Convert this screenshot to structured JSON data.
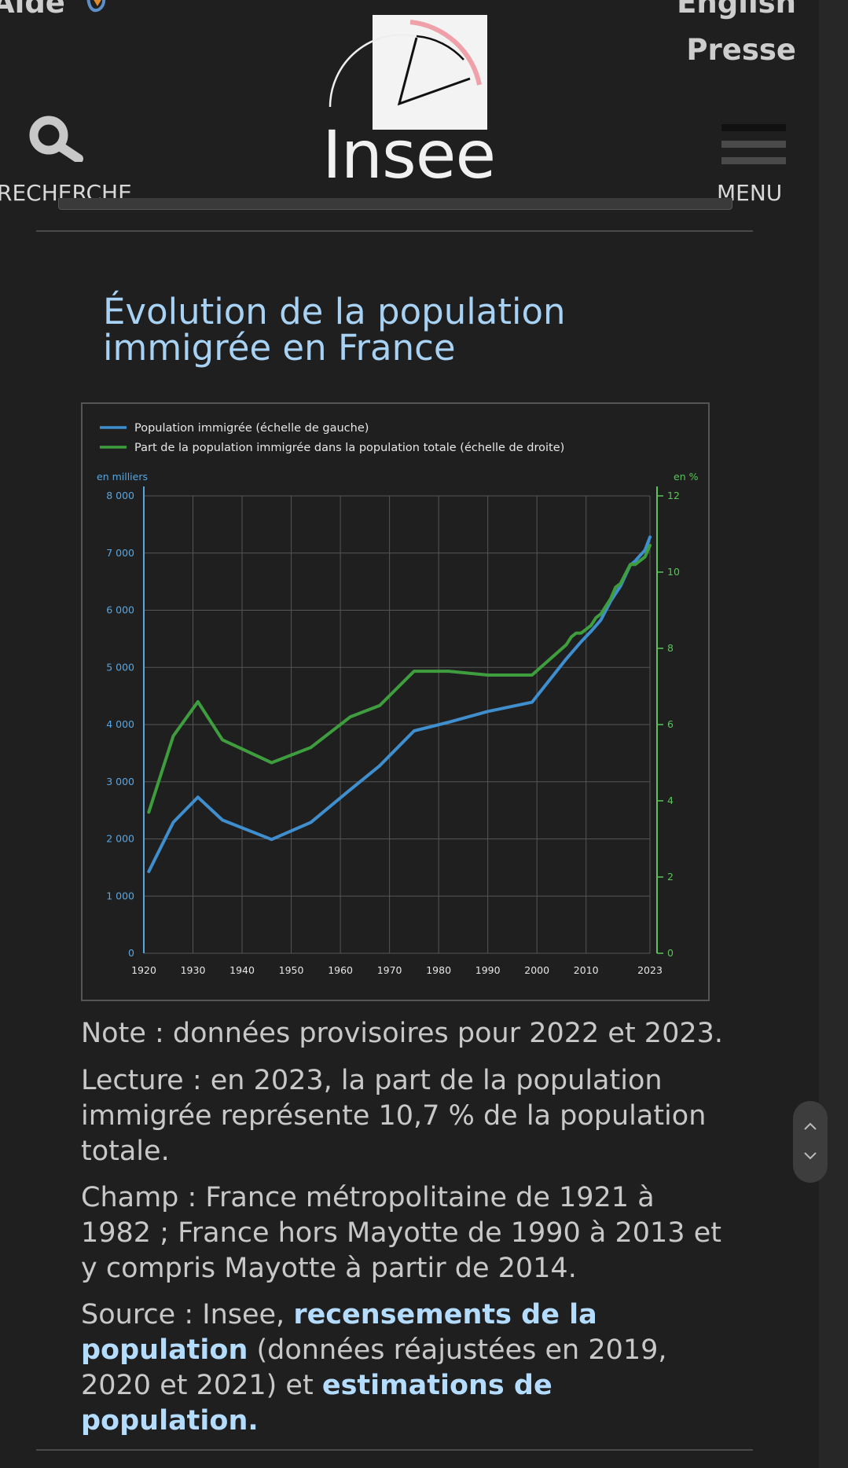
{
  "header": {
    "aide_label": "Aide",
    "english_label": "English",
    "presse_label": "Presse",
    "logo_text": "Insee",
    "search_label": "RECHERCHE",
    "menu_label": "MENU"
  },
  "main": {
    "title_line1": "Évolution de la population",
    "title_line2": "immigrée en France",
    "note": "Note : données provisoires pour 2022 et 2023.",
    "lecture": "Lecture : en 2023, la part de la population immigrée représente 10,7 % de la population totale.",
    "champ": "Champ : France métropolitaine de 1921 à 1982 ; France hors Mayotte de 1990 à 2013 et y compris Mayotte à partir de 2014.",
    "source_prefix": "Source : Insee, ",
    "source_link1": "recensements de la population",
    "source_middle": " (données réajustées en 2019, 2020 et 2021) et ",
    "source_link2": "estimations de population."
  },
  "colors": {
    "background": "#1f1f1f",
    "title": "#a8d2f4",
    "link": "#b4dcff",
    "series_population": "#3f8fcf",
    "series_share": "#3e9e3e",
    "axis_left": "#5aa6e0",
    "axis_right": "#5cc25c"
  },
  "chart_data": {
    "type": "line",
    "legend_position": "top-left",
    "grid": true,
    "x": {
      "min": 1920,
      "max": 2023,
      "ticks": [
        1920,
        1930,
        1940,
        1950,
        1960,
        1970,
        1980,
        1990,
        2000,
        2010,
        2023
      ],
      "tick_labels": [
        "1920",
        "1930",
        "1940",
        "1950",
        "1960",
        "1970",
        "1980",
        "1990",
        "2000",
        "2010",
        "2023"
      ]
    },
    "y_left": {
      "label": "en milliers",
      "min": 0,
      "max": 8000,
      "ticks": [
        0,
        1000,
        2000,
        3000,
        4000,
        5000,
        6000,
        7000,
        8000
      ],
      "tick_labels": [
        "0",
        "1 000",
        "2 000",
        "3 000",
        "4 000",
        "5 000",
        "6 000",
        "7 000",
        "8 000"
      ]
    },
    "y_right": {
      "label": "en %",
      "min": 0,
      "max": 12,
      "ticks": [
        0,
        2,
        4,
        6,
        8,
        10,
        12
      ],
      "tick_labels": [
        "0",
        "2",
        "4",
        "6",
        "8",
        "10",
        "12"
      ]
    },
    "series": [
      {
        "name": "Population immigrée (échelle de gauche)",
        "axis": "left",
        "x": [
          1921,
          1926,
          1931,
          1936,
          1946,
          1954,
          1962,
          1968,
          1975,
          1982,
          1990,
          1999,
          2006,
          2009,
          2011,
          2013,
          2015,
          2017,
          2019,
          2020,
          2021,
          2022,
          2023
        ],
        "y": [
          1430,
          2290,
          2730,
          2330,
          1990,
          2290,
          2860,
          3280,
          3890,
          4040,
          4230,
          4390,
          5150,
          5450,
          5630,
          5830,
          6160,
          6420,
          6790,
          6860,
          6960,
          7050,
          7280
        ]
      },
      {
        "name": "Part de la population immigrée dans la population totale (échelle de droite)",
        "axis": "right",
        "x": [
          1921,
          1926,
          1931,
          1936,
          1946,
          1954,
          1962,
          1968,
          1975,
          1982,
          1990,
          1999,
          2006,
          2007,
          2008,
          2009,
          2011,
          2012,
          2013,
          2015,
          2016,
          2017,
          2019,
          2020,
          2021,
          2022,
          2023
        ],
        "y": [
          3.7,
          5.7,
          6.6,
          5.6,
          5.0,
          5.4,
          6.2,
          6.5,
          7.4,
          7.4,
          7.3,
          7.3,
          8.1,
          8.3,
          8.4,
          8.4,
          8.6,
          8.8,
          8.9,
          9.3,
          9.6,
          9.7,
          10.2,
          10.2,
          10.3,
          10.4,
          10.7
        ]
      }
    ]
  }
}
